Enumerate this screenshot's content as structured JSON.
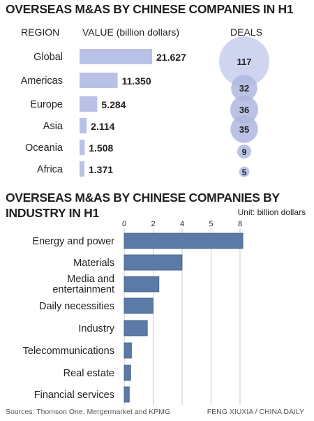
{
  "colors": {
    "bar_light": "#b9c1e6",
    "bubble": "#cfd5ef",
    "bubble_dark": "#aeb8e0",
    "bar_industry": "#5b7aa6",
    "bar_industry_edge": "#3f5d87",
    "grid": "#c8c8c8",
    "text": "#231f20"
  },
  "chart_data": [
    {
      "type": "bar",
      "title": "OVERSEAS M&AS BY CHINESE COMPANIES IN H1",
      "region_label": "REGION",
      "value_label": "VALUE (billion dollars)",
      "deals_label": "DEALS",
      "categories": [
        "Global",
        "Americas",
        "Europe",
        "Asia",
        "Oceania",
        "Africa"
      ],
      "values": [
        "21.627",
        "11.350",
        "5.284",
        "2.114",
        "1.508",
        "1.371"
      ],
      "deals": [
        "117",
        "32",
        "36",
        "35",
        "9",
        "5"
      ],
      "xlim": [
        0,
        21.627
      ]
    },
    {
      "type": "bar",
      "title": "OVERSEAS M&AS BY CHINESE COMPANIES BY INDUSTRY IN H1",
      "unit": "Unit: billion dollars",
      "ticks": [
        "0",
        "2",
        "4",
        "5",
        "8"
      ],
      "categories": [
        "Energy and power",
        "Materials",
        "Media and entertainment",
        "Daily necessities",
        "Industry",
        "Telecommunications",
        "Real estate",
        "Financial services"
      ],
      "values": [
        8.2,
        4.0,
        2.4,
        2.0,
        1.6,
        0.5,
        0.45,
        0.35
      ],
      "xlim": [
        0,
        8.2
      ]
    }
  ],
  "footer": {
    "sources": "Sources: Thomson One, Mergermarket and KPMG",
    "credit": "FENG XIUXIA / CHINA DAILY"
  }
}
